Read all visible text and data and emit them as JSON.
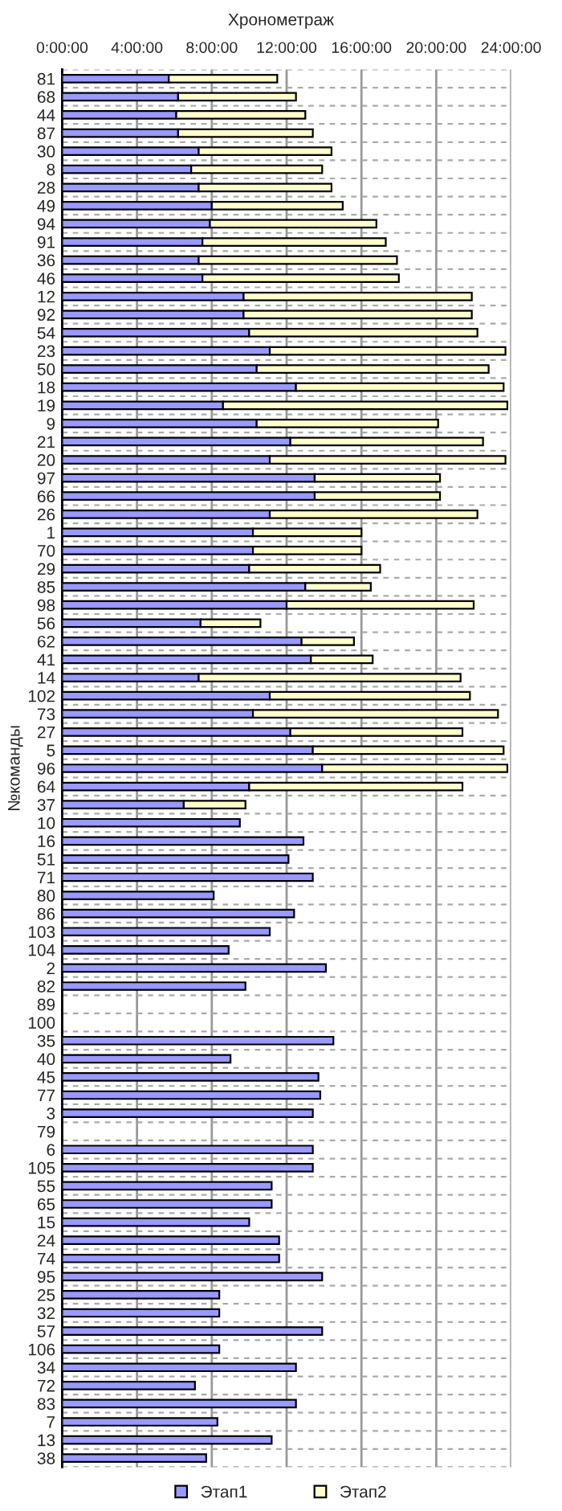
{
  "chart_data": {
    "type": "bar",
    "orientation": "horizontal",
    "stacked": true,
    "title": "Хронометраж",
    "ylabel": "№команды",
    "categories": [
      "81",
      "68",
      "44",
      "87",
      "30",
      "8",
      "28",
      "49",
      "94",
      "91",
      "36",
      "46",
      "12",
      "92",
      "54",
      "23",
      "50",
      "18",
      "19",
      "9",
      "21",
      "20",
      "97",
      "66",
      "26",
      "1",
      "70",
      "29",
      "85",
      "98",
      "56",
      "62",
      "41",
      "14",
      "102",
      "73",
      "27",
      "5",
      "96",
      "64",
      "37",
      "10",
      "16",
      "51",
      "71",
      "80",
      "86",
      "103",
      "104",
      "2",
      "82",
      "89",
      "100",
      "35",
      "40",
      "45",
      "77",
      "3",
      "79",
      "6",
      "105",
      "55",
      "65",
      "15",
      "24",
      "74",
      "95",
      "25",
      "32",
      "57",
      "106",
      "34",
      "72",
      "83",
      "7",
      "13",
      "38"
    ],
    "series": [
      {
        "name": "Этап1",
        "color": "#9999ff",
        "values": [
          5.7,
          6.2,
          6.1,
          6.2,
          7.3,
          6.9,
          7.3,
          8.0,
          7.9,
          7.5,
          7.3,
          7.5,
          9.7,
          9.7,
          10.0,
          11.1,
          10.4,
          12.5,
          8.6,
          10.4,
          12.2,
          11.1,
          13.5,
          13.5,
          11.1,
          10.2,
          10.2,
          10.0,
          13.0,
          12.0,
          7.4,
          12.8,
          13.3,
          7.3,
          11.1,
          10.2,
          12.2,
          13.4,
          13.9,
          10.0,
          6.5,
          9.5,
          12.9,
          12.1,
          13.4,
          8.1,
          12.4,
          11.1,
          8.9,
          14.1,
          9.8,
          null,
          null,
          14.5,
          9.0,
          13.7,
          13.8,
          13.4,
          null,
          13.4,
          13.4,
          11.2,
          11.2,
          10.0,
          11.6,
          11.6,
          13.9,
          8.4,
          8.4,
          13.9,
          8.4,
          12.5,
          7.1,
          12.5,
          8.3,
          11.2,
          7.7
        ]
      },
      {
        "name": "Этап2",
        "color": "#ffffcc",
        "values": [
          5.8,
          6.3,
          6.9,
          7.2,
          7.1,
          7.0,
          7.1,
          7.0,
          8.9,
          9.8,
          10.6,
          10.5,
          12.2,
          12.2,
          12.2,
          12.6,
          12.4,
          11.1,
          15.2,
          9.7,
          10.3,
          12.6,
          6.7,
          6.7,
          11.1,
          5.8,
          5.8,
          7.0,
          3.5,
          10.0,
          3.2,
          2.8,
          3.3,
          14.0,
          10.7,
          13.1,
          9.2,
          10.2,
          9.9,
          11.4,
          3.3,
          null,
          null,
          null,
          null,
          null,
          null,
          null,
          null,
          null,
          null,
          null,
          null,
          null,
          null,
          null,
          null,
          null,
          null,
          null,
          null,
          null,
          null,
          null,
          null,
          null,
          null,
          null,
          null,
          null,
          null,
          null,
          null,
          null,
          null,
          null,
          null
        ]
      }
    ],
    "xlim": [
      0,
      24
    ],
    "xticks": [
      {
        "value": 0,
        "label": "0:00:00"
      },
      {
        "value": 4,
        "label": "4:00:00"
      },
      {
        "value": 8,
        "label": "8:00:00"
      },
      {
        "value": 12,
        "label": "12:00:00"
      },
      {
        "value": 16,
        "label": "16:00:00"
      },
      {
        "value": 20,
        "label": "20:00:00"
      },
      {
        "value": 24,
        "label": "24:00:00"
      }
    ],
    "grid": true,
    "legend": "bottom"
  }
}
